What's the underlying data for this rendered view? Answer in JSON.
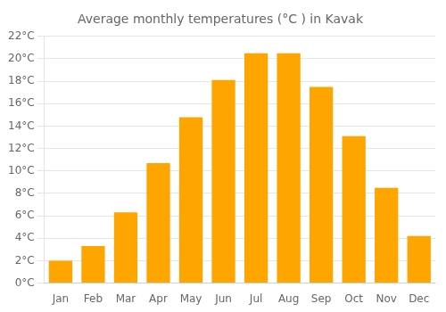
{
  "chart_data": {
    "type": "bar",
    "title": "Average monthly temperatures (°C ) in Kavak",
    "categories": [
      "Jan",
      "Feb",
      "Mar",
      "Apr",
      "May",
      "Jun",
      "Jul",
      "Aug",
      "Sep",
      "Oct",
      "Nov",
      "Dec"
    ],
    "values": [
      2.0,
      3.3,
      6.3,
      10.7,
      14.8,
      18.1,
      20.5,
      20.5,
      17.5,
      13.1,
      8.5,
      4.2
    ],
    "color": "#FFA500",
    "ylim": [
      0,
      22
    ],
    "yticks": [
      {
        "value": 0,
        "label": "0°C"
      },
      {
        "value": 2,
        "label": "2°C"
      },
      {
        "value": 4,
        "label": "4°C"
      },
      {
        "value": 6,
        "label": "6°C"
      },
      {
        "value": 8,
        "label": "8°C"
      },
      {
        "value": 10,
        "label": "10°C"
      },
      {
        "value": 12,
        "label": "12°C"
      },
      {
        "value": 14,
        "label": "14°C"
      },
      {
        "value": 16,
        "label": "16°C"
      },
      {
        "value": 18,
        "label": "18°C"
      },
      {
        "value": 20,
        "label": "20°C"
      },
      {
        "value": 22,
        "label": "22°C"
      }
    ],
    "grid": true
  }
}
